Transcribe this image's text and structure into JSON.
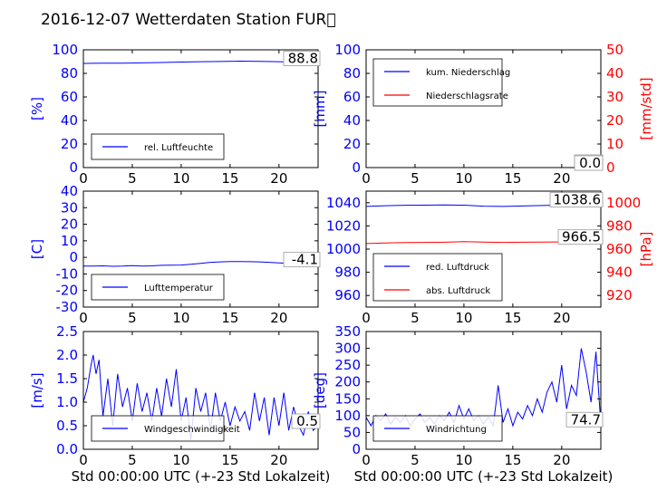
{
  "title": "2016-12-07 Wetterdaten Station FUR\u0000",
  "colors": {
    "blue": "#0000ff",
    "red": "#ff0000",
    "black": "#000000"
  },
  "chart_data": [
    {
      "type": "line",
      "id": "humidity",
      "ylabel": "[%]",
      "xlabel": "",
      "xlim": [
        0,
        24
      ],
      "ylim": [
        0,
        100
      ],
      "xticks": [
        0,
        5,
        10,
        15,
        20
      ],
      "yticks": [
        0,
        20,
        40,
        60,
        80,
        100
      ],
      "last_value_label": "88.8",
      "legend": {
        "placement": "lower-left",
        "entries": [
          {
            "name": "rel. Luftfeuchte",
            "color": "#0000ff"
          }
        ]
      },
      "series": [
        {
          "name": "rel. Luftfeuchte",
          "color": "#0000ff",
          "x": [
            0,
            2,
            4,
            6,
            8,
            10,
            12,
            14,
            16,
            18,
            20,
            22,
            24
          ],
          "y": [
            88.5,
            88.7,
            88.6,
            88.9,
            89.2,
            89.6,
            89.9,
            90.1,
            90.4,
            90.2,
            89.9,
            89.4,
            88.8
          ]
        }
      ]
    },
    {
      "type": "line",
      "id": "precip",
      "ylabel": "[mm]",
      "y2label": "[mm/std]",
      "xlabel": "",
      "xlim": [
        0,
        24
      ],
      "ylim": [
        0,
        100
      ],
      "y2lim": [
        0,
        50
      ],
      "xticks": [
        0,
        5,
        10,
        15,
        20
      ],
      "yticks": [
        0,
        20,
        40,
        60,
        80,
        100
      ],
      "y2ticks": [
        0,
        10,
        20,
        30,
        40,
        50
      ],
      "last_value_label": "0.0",
      "last_value_label_2": "0.0",
      "legend": {
        "placement": "top-left",
        "entries": [
          {
            "name": "kum. Niederschlag",
            "color": "#0000ff"
          },
          {
            "name": "Niederschlagsrate",
            "color": "#ff0000"
          }
        ]
      },
      "series": [
        {
          "name": "kum. Niederschlag",
          "color": "#0000ff",
          "axis": "left",
          "x": [
            0,
            24
          ],
          "y": [
            0,
            0
          ]
        },
        {
          "name": "Niederschlagsrate",
          "color": "#ff0000",
          "axis": "right",
          "x": [
            0,
            24
          ],
          "y": [
            0,
            0
          ]
        }
      ]
    },
    {
      "type": "line",
      "id": "temperature",
      "ylabel": "[C]",
      "xlabel": "",
      "xlim": [
        0,
        24
      ],
      "ylim": [
        -30,
        40
      ],
      "xticks": [
        0,
        5,
        10,
        15,
        20
      ],
      "yticks": [
        -30,
        -20,
        -10,
        0,
        10,
        20,
        30,
        40
      ],
      "last_value_label": "-4.1",
      "legend": {
        "placement": "lower-left",
        "entries": [
          {
            "name": "Lufttemperatur",
            "color": "#0000ff"
          }
        ]
      },
      "series": [
        {
          "name": "Lufttemperatur",
          "color": "#0000ff",
          "x": [
            0,
            1,
            2,
            3,
            4,
            5,
            6,
            7,
            8,
            9,
            10,
            11,
            12,
            13,
            14,
            15,
            16,
            17,
            18,
            19,
            20,
            21,
            22,
            23,
            24
          ],
          "y": [
            -5.2,
            -5.3,
            -5.1,
            -5.4,
            -5.3,
            -5.0,
            -5.2,
            -5.1,
            -4.8,
            -4.7,
            -4.6,
            -4.2,
            -3.6,
            -3.0,
            -2.7,
            -2.5,
            -2.5,
            -2.6,
            -2.7,
            -3.0,
            -3.3,
            -3.6,
            -3.8,
            -4.0,
            -4.1
          ]
        }
      ]
    },
    {
      "type": "line",
      "id": "pressure",
      "ylabel": "",
      "y2label": "[hPa]",
      "xlabel": "",
      "xlim": [
        0,
        24
      ],
      "ylim": [
        950,
        1050
      ],
      "y2lim": [
        910,
        1010
      ],
      "xticks": [
        0,
        5,
        10,
        15,
        20
      ],
      "yticks": [
        960,
        980,
        1000,
        1020,
        1040
      ],
      "y2ticks": [
        920,
        940,
        960,
        980,
        1000
      ],
      "last_value_label": "1038.6",
      "last_value_label_2": "966.5",
      "legend": {
        "placement": "lower-left",
        "entries": [
          {
            "name": "red. Luftdruck",
            "color": "#0000ff"
          },
          {
            "name": "abs. Luftdruck",
            "color": "#ff0000"
          }
        ]
      },
      "series": [
        {
          "name": "red. Luftdruck",
          "color": "#0000ff",
          "axis": "left",
          "x": [
            0,
            2,
            4,
            6,
            8,
            10,
            12,
            14,
            16,
            18,
            20,
            22,
            24
          ],
          "y": [
            1036.8,
            1037.4,
            1037.8,
            1037.9,
            1038.1,
            1037.9,
            1037.0,
            1036.8,
            1037.2,
            1037.6,
            1038.0,
            1038.4,
            1038.6
          ]
        },
        {
          "name": "abs. Luftdruck",
          "color": "#ff0000",
          "axis": "right",
          "x": [
            0,
            2,
            4,
            6,
            8,
            10,
            12,
            14,
            16,
            18,
            20,
            22,
            24
          ],
          "y": [
            964.8,
            965.3,
            965.6,
            965.8,
            965.9,
            966.4,
            966.0,
            965.8,
            965.9,
            966.0,
            966.2,
            966.4,
            966.5
          ]
        }
      ]
    },
    {
      "type": "line",
      "id": "windspeed",
      "ylabel": "[m/s]",
      "xlabel": "Std 00:00:00 UTC (+-23 Std Lokalzeit)",
      "xlim": [
        0,
        24
      ],
      "ylim": [
        0,
        2.5
      ],
      "xticks": [
        0,
        5,
        10,
        15,
        20
      ],
      "yticks": [
        0.0,
        0.5,
        1.0,
        1.5,
        2.0,
        2.5
      ],
      "ytick_labels": [
        "0.0",
        "0.5",
        "1.0",
        "1.5",
        "2.0",
        "2.5"
      ],
      "last_value_label": "0.5",
      "legend": {
        "placement": "lower-left",
        "entries": [
          {
            "name": "Windgeschwindigkeit",
            "color": "#0000ff"
          }
        ]
      },
      "series": [
        {
          "name": "Windgeschwindigkeit",
          "color": "#0000ff",
          "x": [
            0,
            0.4,
            0.8,
            1.0,
            1.3,
            1.6,
            2.0,
            2.5,
            3.0,
            3.5,
            4.0,
            4.5,
            5.0,
            5.5,
            6.0,
            6.5,
            7.0,
            7.5,
            8.0,
            8.5,
            9.0,
            9.5,
            10.0,
            10.5,
            11.0,
            11.5,
            12.0,
            12.5,
            13.0,
            13.5,
            14.0,
            14.5,
            15.0,
            15.5,
            16.0,
            16.5,
            17.0,
            17.5,
            18.0,
            18.5,
            19.0,
            19.5,
            20.0,
            20.5,
            21.0,
            21.5,
            22.0,
            22.5,
            23.0,
            23.5,
            24.0
          ],
          "y": [
            1.0,
            1.3,
            1.8,
            2.0,
            1.6,
            1.9,
            0.7,
            1.5,
            0.5,
            1.6,
            0.9,
            1.3,
            0.6,
            1.4,
            0.8,
            1.2,
            0.6,
            1.3,
            0.7,
            1.5,
            0.9,
            1.7,
            0.6,
            1.1,
            0.2,
            1.3,
            0.8,
            1.2,
            0.4,
            1.2,
            0.6,
            1.0,
            0.5,
            0.9,
            0.6,
            0.8,
            0.4,
            1.2,
            0.6,
            1.1,
            0.3,
            1.1,
            0.5,
            1.2,
            0.4,
            0.9,
            0.5,
            0.3,
            0.8,
            0.4,
            0.5
          ]
        }
      ]
    },
    {
      "type": "line",
      "id": "winddir",
      "ylabel": "[deg]",
      "xlabel": "Std 00:00:00 UTC (+-23 Std Lokalzeit)",
      "xlim": [
        0,
        24
      ],
      "ylim": [
        0,
        350
      ],
      "xticks": [
        0,
        5,
        10,
        15,
        20
      ],
      "yticks": [
        0,
        50,
        100,
        150,
        200,
        250,
        300,
        350
      ],
      "last_value_label": "74.7",
      "legend": {
        "placement": "lower-left",
        "entries": [
          {
            "name": "Windrichtung",
            "color": "#0000ff"
          }
        ]
      },
      "series": [
        {
          "name": "Windrichtung",
          "color": "#0000ff",
          "x": [
            0,
            0.5,
            1.0,
            1.5,
            2.0,
            2.5,
            3.0,
            3.5,
            4.0,
            4.5,
            5.0,
            5.5,
            6.0,
            6.5,
            7.0,
            7.5,
            8.0,
            8.5,
            9.0,
            9.5,
            10.0,
            10.5,
            11.0,
            11.5,
            12.0,
            12.5,
            13.0,
            13.5,
            14.0,
            14.5,
            15.0,
            15.5,
            16.0,
            16.5,
            17.0,
            17.5,
            18.0,
            18.5,
            19.0,
            19.5,
            20.0,
            20.5,
            21.0,
            21.5,
            22.0,
            22.5,
            23.0,
            23.5,
            24.0
          ],
          "y": [
            95,
            70,
            100,
            85,
            105,
            75,
            95,
            80,
            100,
            70,
            90,
            105,
            80,
            95,
            75,
            100,
            85,
            110,
            80,
            130,
            90,
            120,
            85,
            100,
            75,
            95,
            70,
            190,
            80,
            120,
            70,
            110,
            90,
            130,
            100,
            150,
            110,
            170,
            200,
            140,
            250,
            120,
            190,
            160,
            300,
            230,
            140,
            290,
            74.7
          ]
        }
      ]
    }
  ]
}
